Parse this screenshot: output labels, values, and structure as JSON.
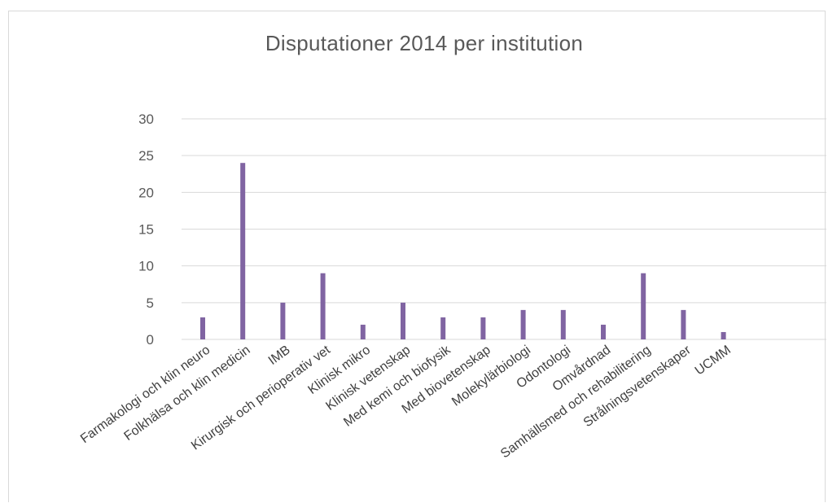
{
  "chart_data": {
    "type": "bar",
    "title": "Disputationer 2014 per institution",
    "xlabel": "",
    "ylabel": "",
    "ylim": [
      0,
      30
    ],
    "yticks": [
      0,
      5,
      10,
      15,
      20,
      25,
      30
    ],
    "grid": true,
    "legend": "none",
    "bar_color": "#8064a2",
    "categories": [
      "Farmakologi och klin neuro",
      "Folkhälsa och klin medicin",
      "IMB",
      "Kirurgisk och perioperativ vet",
      "Klinisk mikro",
      "Klinisk vetenskap",
      "Med kemi och biofysik",
      "Med biovetenskap",
      "Molekylärbiologi",
      "Odontologi",
      "Omvårdnad",
      "Samhällsmed och rehabilitering",
      "Strålningsvetenskaper",
      "UCMM"
    ],
    "values": [
      3,
      24,
      5,
      9,
      2,
      5,
      3,
      3,
      4,
      4,
      2,
      9,
      4,
      1
    ]
  }
}
